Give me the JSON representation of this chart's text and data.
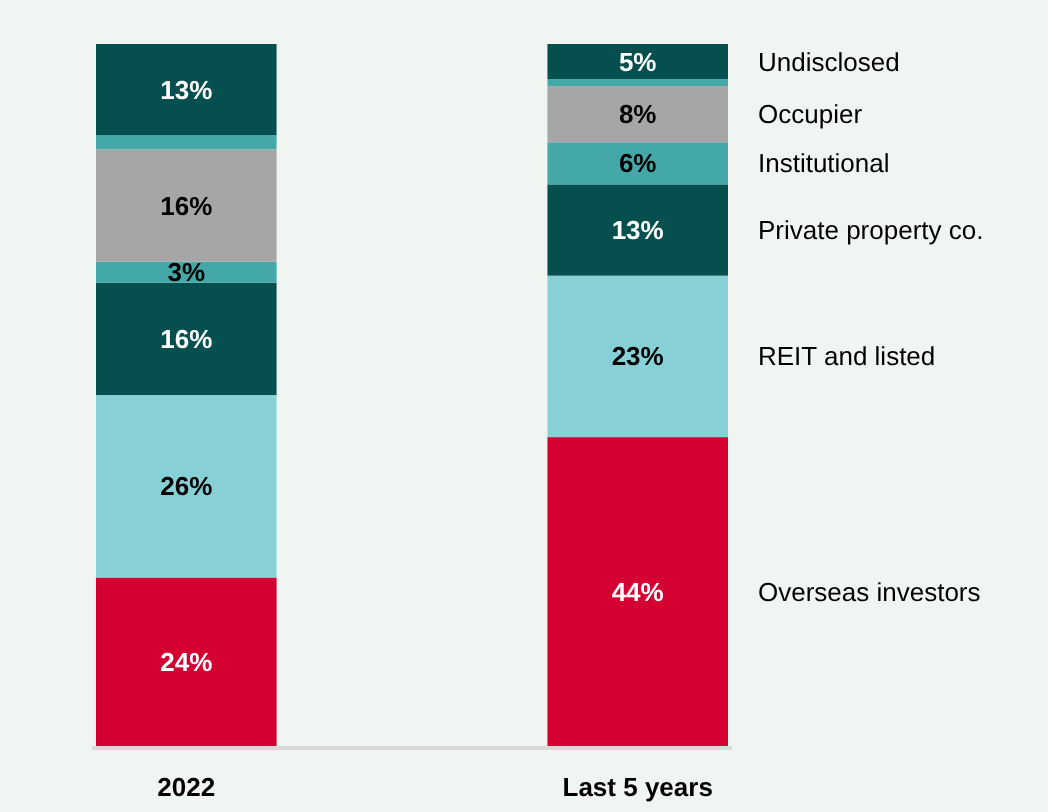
{
  "chart_data": {
    "type": "bar",
    "stacked": true,
    "categories": [
      "2022",
      "Last 5 years"
    ],
    "ylim": [
      0,
      100
    ],
    "legend": "right",
    "series": [
      {
        "name": "Overseas investors",
        "color": "#d50032",
        "values": [
          24,
          44
        ],
        "value_labels": [
          "24%",
          "44%"
        ]
      },
      {
        "name": "REIT and listed",
        "color": "#87d1d6",
        "values": [
          26,
          23
        ],
        "value_labels": [
          "26%",
          "23%"
        ]
      },
      {
        "name": "Private property co.",
        "color": "#05504f",
        "values": [
          16,
          13
        ],
        "value_labels": [
          "16%",
          "13%"
        ]
      },
      {
        "name": "Institutional",
        "color": "#45a8a8",
        "values": [
          3,
          6
        ],
        "value_labels": [
          "3%",
          "6%"
        ]
      },
      {
        "name": "Occupier",
        "color": "#a6a6a6",
        "values": [
          16,
          8
        ],
        "value_labels": [
          "16%",
          "8%"
        ]
      },
      {
        "color": "#45a8a8",
        "values": [
          2,
          1
        ],
        "value_labels": [
          null,
          null
        ]
      },
      {
        "name": "Undisclosed",
        "color": "#05504f",
        "values": [
          13,
          5
        ],
        "value_labels": [
          "13%",
          "5%"
        ]
      }
    ]
  }
}
